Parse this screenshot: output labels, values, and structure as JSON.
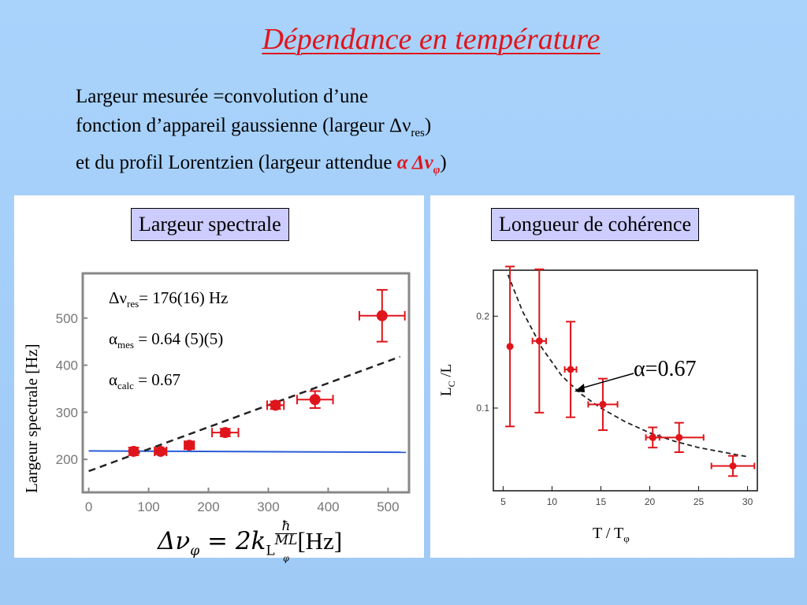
{
  "slide": {
    "title": "Dépendance en température",
    "intro_line1": "Largeur mesurée =convolution d’une",
    "intro_line2_pre": "fonction d’appareil gaussienne (largeur Δν",
    "intro_line2_sub": "res",
    "intro_line2_post": ")",
    "intro_line3_pre": "et du profil Lorentzien (largeur attendue ",
    "intro_line3_greek": "α Δν",
    "intro_line3_greek_sub": "φ",
    "intro_line3_post": ")"
  },
  "left_panel": {
    "label": "Largeur spectrale",
    "ylabel": "Largeur spectrale [Hz]",
    "ann1_pre": "Δν",
    "ann1_sub": "res",
    "ann1_post": "= 176(16) Hz",
    "ann2_pre": "α",
    "ann2_sub": "mes",
    "ann2_post": " = 0.64 (5)(5)",
    "ann3_pre": "α",
    "ann3_sub": "calc",
    "ann3_post": " = 0.67",
    "formula_lhs": "Δν",
    "formula_lhs_sub": "φ",
    "formula_mid": " = 2k",
    "formula_mid_sub": "L",
    "formula_num": "ħ",
    "formula_den": "ML",
    "formula_den_sub": "φ",
    "formula_unit": "[Hz]"
  },
  "right_panel": {
    "label": "Longueur de cohérence",
    "ylabel_main": "L",
    "ylabel_sub": "C",
    "ylabel_post": " /L",
    "xlabel_pre": "T / T",
    "xlabel_sub": "φ",
    "annotation": "α=0.67"
  },
  "colors": {
    "accent_red": "#e0151b",
    "label_box": "#ccccff",
    "baseline_blue": "#2a5bd7",
    "background": "#a9d3fb"
  },
  "chart_data": [
    {
      "type": "scatter",
      "xlim": [
        -10,
        535
      ],
      "ylim": [
        130,
        595
      ],
      "xticks": [
        0,
        100,
        200,
        300,
        400,
        500
      ],
      "yticks": [
        200,
        300,
        400,
        500
      ],
      "series": [
        {
          "kind": "points",
          "x": [
            75,
            120,
            168,
            228,
            312,
            378,
            490
          ],
          "y": [
            217,
            217,
            230,
            257,
            315,
            327,
            505
          ],
          "xerr": [
            5,
            10,
            8,
            22,
            14,
            30,
            38
          ],
          "yerr": [
            8,
            6,
            8,
            8,
            8,
            18,
            55
          ]
        },
        {
          "kind": "dashed_fit",
          "x": [
            0,
            520
          ],
          "y": [
            175,
            418
          ]
        },
        {
          "kind": "baseline",
          "x": [
            0,
            530
          ],
          "y": [
            218,
            215
          ]
        }
      ]
    },
    {
      "type": "scatter",
      "xlim": [
        4,
        31
      ],
      "ylim": [
        0.01,
        0.25
      ],
      "xticks": [
        5,
        10,
        15,
        20,
        25,
        30
      ],
      "yticks": [
        0.1,
        0.2
      ],
      "series": [
        {
          "kind": "points",
          "x": [
            5.7,
            8.7,
            11.9,
            15.2,
            20.3,
            23.0,
            28.5
          ],
          "y": [
            0.167,
            0.173,
            0.142,
            0.104,
            0.068,
            0.068,
            0.037
          ],
          "xerr": [
            0,
            0.7,
            0.6,
            1.5,
            0.7,
            2.5,
            2.2
          ],
          "yerr": [
            0.087,
            0.078,
            0.052,
            0.028,
            0.011,
            0.016,
            0.011
          ]
        },
        {
          "kind": "dashed_curve",
          "x": [
            5.5,
            7,
            9,
            11,
            13,
            15,
            17.5,
            20,
            22.5,
            25,
            27.5,
            30
          ],
          "y": [
            0.245,
            0.205,
            0.165,
            0.135,
            0.115,
            0.1,
            0.085,
            0.073,
            0.064,
            0.057,
            0.052,
            0.047
          ]
        }
      ]
    }
  ]
}
